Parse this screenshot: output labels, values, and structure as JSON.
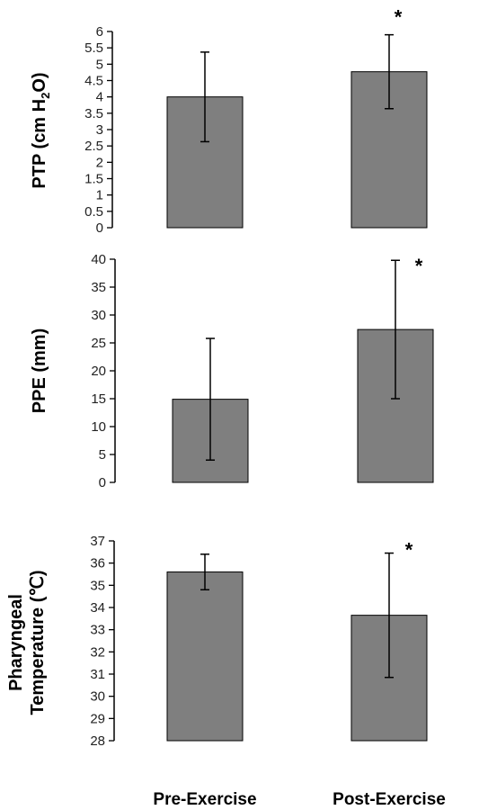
{
  "chart_data": [
    {
      "type": "bar",
      "categories": [
        "Pre-Exercise",
        "Post-Exercise"
      ],
      "values": [
        4.0,
        4.77
      ],
      "error": [
        1.37,
        1.13
      ],
      "ylabel_parts": [
        "PTP (cm H",
        "2",
        "O)"
      ],
      "ylim": [
        0,
        6
      ],
      "yticks": [
        "0",
        "0.5",
        "1",
        "1.5",
        "2",
        "2.5",
        "3",
        "3.5",
        "4",
        "4.5",
        "5",
        "5.5",
        "6"
      ],
      "significance": [
        "",
        "*"
      ],
      "bar_color": "#7f7f7f"
    },
    {
      "type": "bar",
      "categories": [
        "Pre-Exercise",
        "Post-Exercise"
      ],
      "values": [
        14.9,
        27.4
      ],
      "error": [
        10.9,
        12.4
      ],
      "ylabel": "PPE (mm)",
      "ylim": [
        0,
        40
      ],
      "yticks": [
        "0",
        "5",
        "10",
        "15",
        "20",
        "25",
        "30",
        "35",
        "40"
      ],
      "significance": [
        "",
        "*"
      ],
      "bar_color": "#7f7f7f"
    },
    {
      "type": "bar",
      "categories": [
        "Pre-Exercise",
        "Post-Exercise"
      ],
      "values": [
        35.6,
        33.65
      ],
      "error": [
        0.8,
        2.8
      ],
      "ylabel_lines": [
        "Pharyngeal",
        "Temperature (℃)"
      ],
      "ylim": [
        28,
        37
      ],
      "yticks": [
        "28",
        "29",
        "30",
        "31",
        "32",
        "33",
        "34",
        "35",
        "36",
        "37"
      ],
      "significance": [
        "",
        "*"
      ],
      "bar_color": "#7f7f7f"
    }
  ],
  "x_labels": [
    "Pre-Exercise",
    "Post-Exercise"
  ]
}
